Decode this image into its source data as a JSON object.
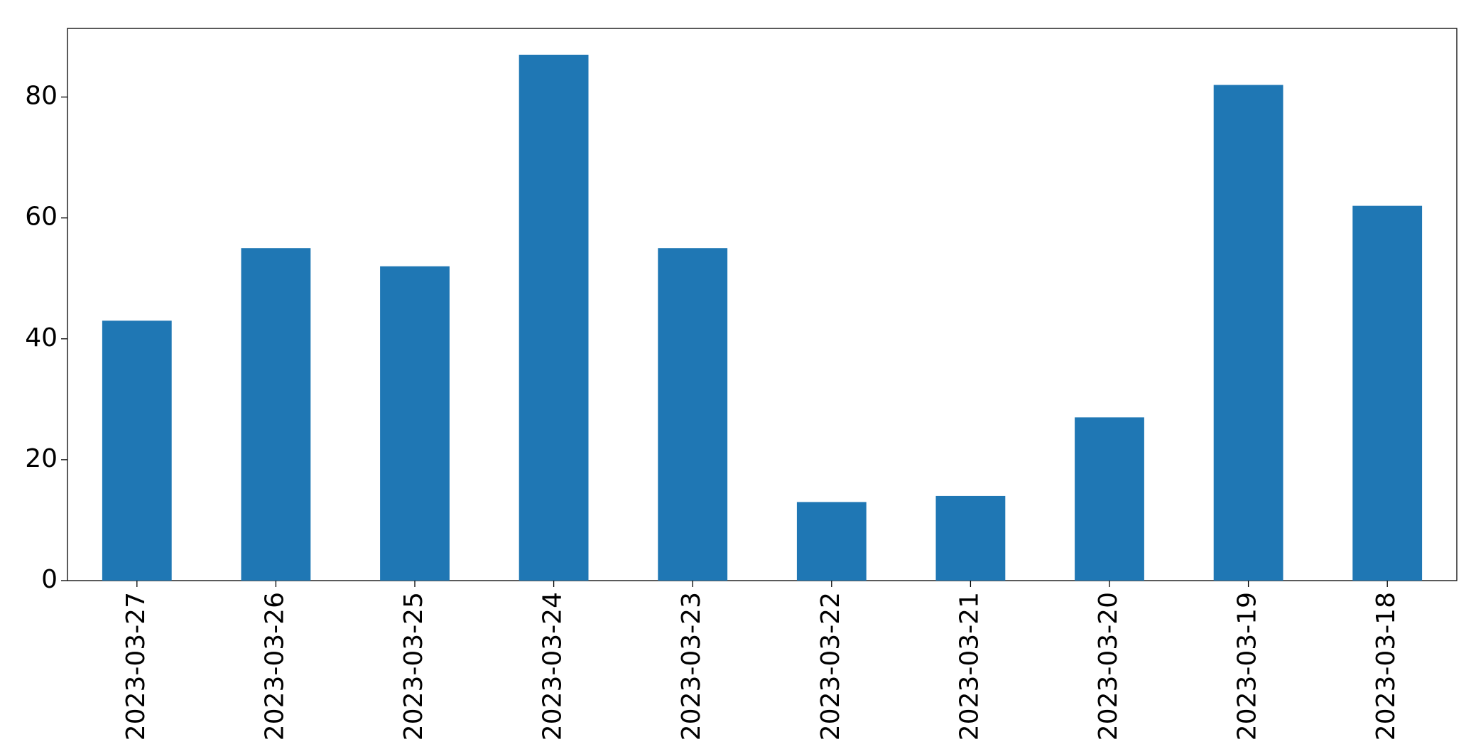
{
  "chart_data": {
    "type": "bar",
    "categories": [
      "2023-03-27",
      "2023-03-26",
      "2023-03-25",
      "2023-03-24",
      "2023-03-23",
      "2023-03-22",
      "2023-03-21",
      "2023-03-20",
      "2023-03-19",
      "2023-03-18"
    ],
    "values": [
      43,
      55,
      52,
      87,
      55,
      13,
      14,
      27,
      82,
      62
    ],
    "color": "#1f77b4",
    "ylim": [
      0,
      91.35
    ],
    "yticks": [
      0,
      20,
      40,
      60,
      80
    ],
    "grid": false
  }
}
